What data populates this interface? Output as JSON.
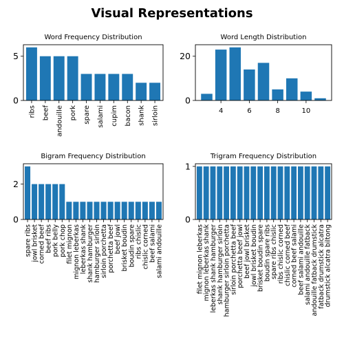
{
  "figure_title": "Visual Representations",
  "colors": {
    "bar": "#1f77b4",
    "axis": "#000000",
    "background": "#ffffff"
  },
  "chart_data": [
    {
      "type": "bar",
      "title": "Word Frequency Distribution",
      "categories": [
        "ribs",
        "beef",
        "andouille",
        "pork",
        "spare",
        "salami",
        "cupim",
        "bacon",
        "shank",
        "sirloin"
      ],
      "values": [
        6,
        5,
        5,
        5,
        3,
        3,
        3,
        3,
        2,
        2
      ],
      "xlabel": "",
      "ylabel": "",
      "ylim": [
        0,
        6.3
      ],
      "yticks": [
        0,
        5
      ],
      "grid": false
    },
    {
      "type": "bar",
      "title": "Word Length Distribution",
      "x": [
        3,
        4,
        5,
        6,
        7,
        8,
        9,
        10,
        11
      ],
      "values": [
        3,
        23,
        24,
        14,
        17,
        5,
        10,
        4,
        1
      ],
      "xlabel": "",
      "ylabel": "",
      "xlim": [
        2.2,
        11.8
      ],
      "xticks": [
        4,
        6,
        8,
        10
      ],
      "ylim": [
        0,
        25.2
      ],
      "yticks": [
        0,
        20
      ],
      "grid": false
    },
    {
      "type": "bar",
      "title": "Bigram Frequency Distribution",
      "categories": [
        "spare ribs",
        "jowl brisket",
        "corned beef",
        "beef ribs",
        "pork belly",
        "pork chop",
        "filet mignon",
        "mignon leberkas",
        "leberkas shank",
        "shank hamburger",
        "hamburger sirloin",
        "sirloin porchetta",
        "porchetta beef",
        "beef jowl",
        "brisket boudin",
        "boudin spare",
        "ribs chislic",
        "chislic corned",
        "beef salami",
        "salami andouille"
      ],
      "values": [
        3,
        2,
        2,
        2,
        2,
        2,
        1,
        1,
        1,
        1,
        1,
        1,
        1,
        1,
        1,
        1,
        1,
        1,
        1,
        1
      ],
      "xlabel": "",
      "ylabel": "",
      "ylim": [
        0,
        3.15
      ],
      "yticks": [
        0,
        2
      ],
      "grid": false
    },
    {
      "type": "bar",
      "title": "Trigram Frequency Distribution",
      "categories": [
        "filet mignon leberkas",
        "mignon leberkas shank",
        "leberkas shank hamburger",
        "shank hamburger sirloin",
        "hamburger sirloin porchetta",
        "sirloin porchetta beef",
        "porchetta beef jowl",
        "beef jowl brisket",
        "jowl brisket boudin",
        "brisket boudin spare",
        "boudin spare ribs",
        "spare ribs chislic",
        "ribs chislic corned",
        "chislic corned beef",
        "corned beef salami",
        "beef salami andouille",
        "salami andouille fatback",
        "andouille fatback drumstick",
        "fatback drumstick alcatra",
        "drumstick alcatra biltong"
      ],
      "values": [
        1,
        1,
        1,
        1,
        1,
        1,
        1,
        1,
        1,
        1,
        1,
        1,
        1,
        1,
        1,
        1,
        1,
        1,
        1,
        1
      ],
      "xlabel": "",
      "ylabel": "",
      "ylim": [
        0,
        1.05
      ],
      "yticks": [
        0,
        1
      ],
      "grid": false
    }
  ]
}
